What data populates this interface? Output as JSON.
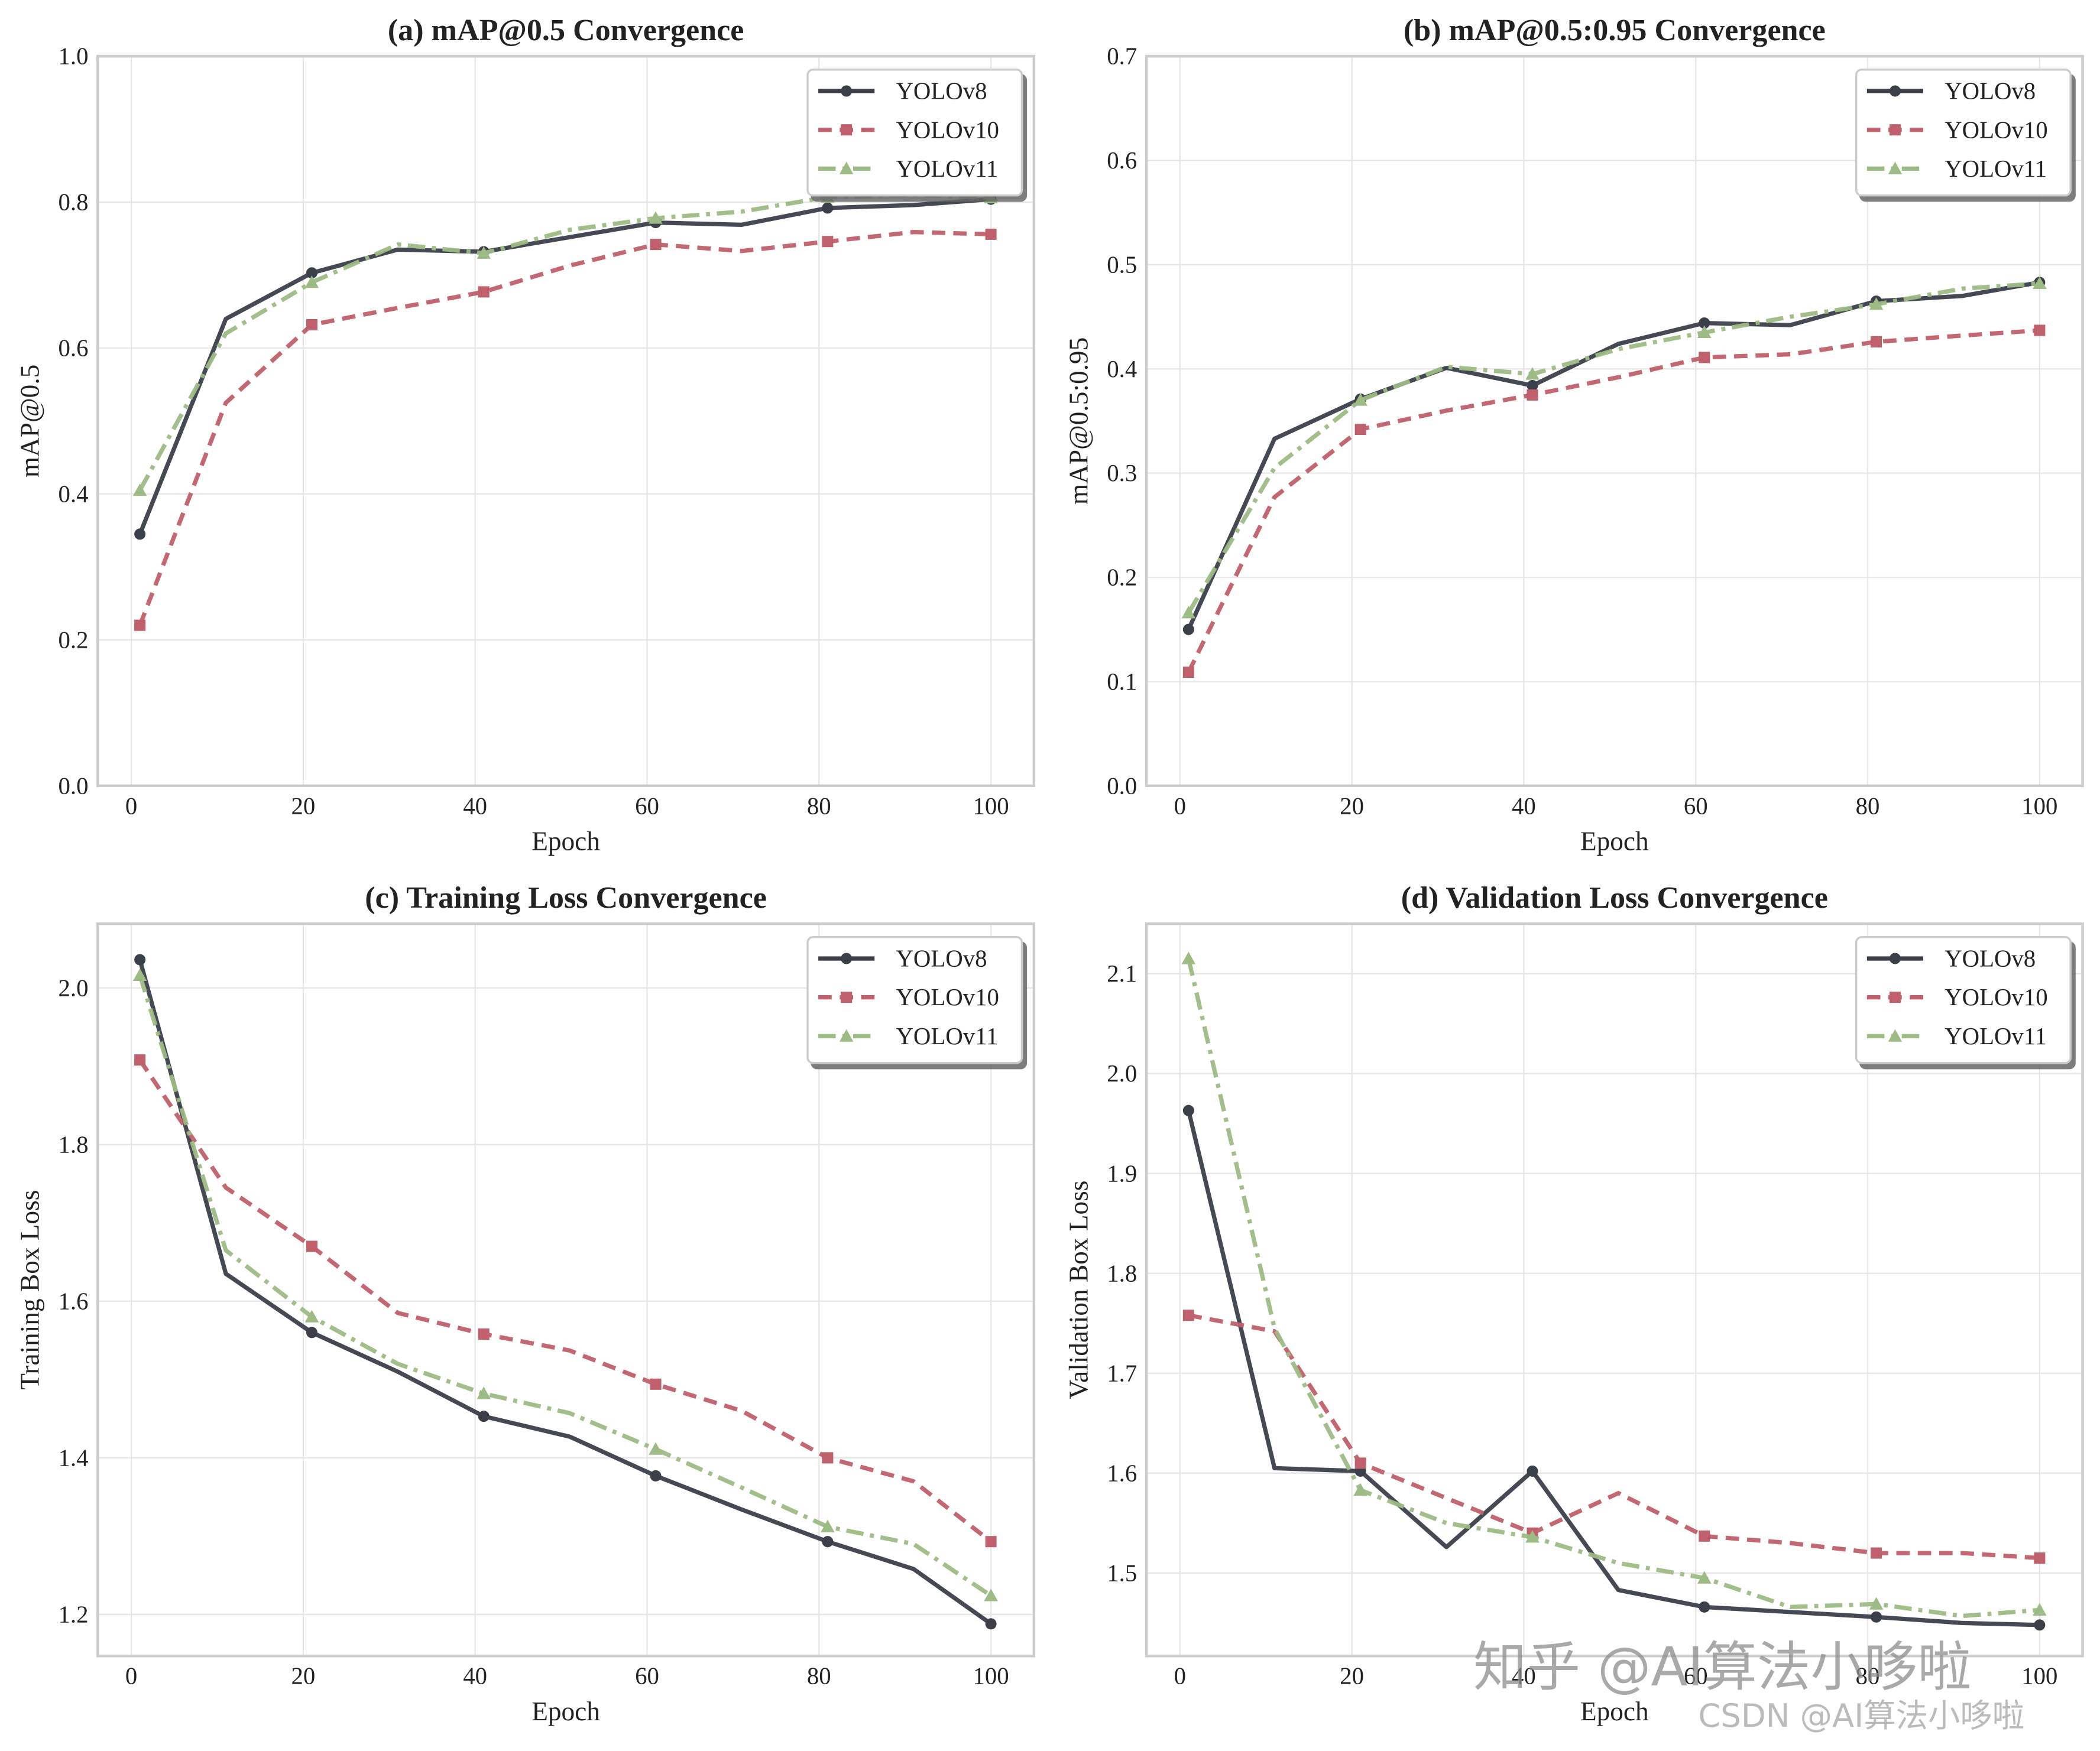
{
  "colors": {
    "YOLOv8": "#3b3f4a",
    "YOLOv10": "#c0606c",
    "YOLOv11": "#9dbb84",
    "grid": "#e6e6e6",
    "frame": "#cccccc",
    "text": "#222222"
  },
  "watermarks": {
    "zhihu": "知乎 @AI算法小哆啦",
    "csdn": "CSDN @AI算法小哆啦"
  },
  "chart_data": [
    {
      "id": "a",
      "type": "line",
      "title": "(a) mAP@0.5 Convergence",
      "xlabel": "Epoch",
      "ylabel": "mAP@0.5",
      "xlim": [
        -3.9,
        105
      ],
      "ylim": [
        0.0,
        1.0
      ],
      "xticks": [
        0,
        20,
        40,
        60,
        80,
        100
      ],
      "yticks": [
        0.0,
        0.2,
        0.4,
        0.6,
        0.8,
        1.0
      ],
      "ytick_labels": [
        "0.0",
        "0.2",
        "0.4",
        "0.6",
        "0.8",
        "1.0"
      ],
      "grid": true,
      "legend": "top-right",
      "x": [
        1,
        11,
        21,
        31,
        41,
        51,
        61,
        71,
        81,
        91,
        100
      ],
      "series": [
        {
          "name": "YOLOv8",
          "style": "solid",
          "marker": "circle",
          "marker_epochs": [
            1,
            21,
            41,
            61,
            81,
            100
          ],
          "values": [
            0.345,
            0.64,
            0.703,
            0.735,
            0.732,
            0.752,
            0.772,
            0.769,
            0.792,
            0.796,
            0.804
          ]
        },
        {
          "name": "YOLOv10",
          "style": "dashed",
          "marker": "square",
          "marker_epochs": [
            1,
            21,
            41,
            61,
            81,
            100
          ],
          "values": [
            0.22,
            0.525,
            0.632,
            0.655,
            0.677,
            0.713,
            0.742,
            0.733,
            0.746,
            0.759,
            0.756
          ]
        },
        {
          "name": "YOLOv11",
          "style": "dashdot",
          "marker": "triangle",
          "marker_epochs": [
            1,
            21,
            41,
            61,
            81,
            100
          ],
          "values": [
            0.405,
            0.62,
            0.69,
            0.742,
            0.73,
            0.762,
            0.778,
            0.787,
            0.807,
            0.81,
            0.806
          ]
        }
      ]
    },
    {
      "id": "b",
      "type": "line",
      "title": "(b) mAP@0.5:0.95 Convergence",
      "xlabel": "Epoch",
      "ylabel": "mAP@0.5:0.95",
      "xlim": [
        -3.9,
        105
      ],
      "ylim": [
        0.0,
        0.7
      ],
      "xticks": [
        0,
        20,
        40,
        60,
        80,
        100
      ],
      "yticks": [
        0.0,
        0.1,
        0.2,
        0.3,
        0.4,
        0.5,
        0.6,
        0.7
      ],
      "ytick_labels": [
        "0.0",
        "0.1",
        "0.2",
        "0.3",
        "0.4",
        "0.5",
        "0.6",
        "0.7"
      ],
      "grid": true,
      "legend": "top-right",
      "x": [
        1,
        11,
        21,
        31,
        41,
        51,
        61,
        71,
        81,
        91,
        100
      ],
      "series": [
        {
          "name": "YOLOv8",
          "style": "solid",
          "marker": "circle",
          "marker_epochs": [
            1,
            21,
            41,
            61,
            81,
            100
          ],
          "values": [
            0.15,
            0.333,
            0.371,
            0.401,
            0.384,
            0.424,
            0.444,
            0.442,
            0.465,
            0.47,
            0.483
          ]
        },
        {
          "name": "YOLOv10",
          "style": "dashed",
          "marker": "square",
          "marker_epochs": [
            1,
            21,
            41,
            61,
            81,
            100
          ],
          "values": [
            0.109,
            0.277,
            0.342,
            0.36,
            0.375,
            0.392,
            0.411,
            0.414,
            0.426,
            0.432,
            0.437
          ]
        },
        {
          "name": "YOLOv11",
          "style": "dashdot",
          "marker": "triangle",
          "marker_epochs": [
            1,
            21,
            41,
            61,
            81,
            100
          ],
          "values": [
            0.166,
            0.305,
            0.37,
            0.402,
            0.395,
            0.419,
            0.435,
            0.45,
            0.462,
            0.477,
            0.482
          ]
        }
      ]
    },
    {
      "id": "c",
      "type": "line",
      "title": "(c) Training Loss Convergence",
      "xlabel": "Epoch",
      "ylabel": "Training Box Loss",
      "xlim": [
        -3.9,
        105
      ],
      "ylim": [
        1.147,
        2.082
      ],
      "xticks": [
        0,
        20,
        40,
        60,
        80,
        100
      ],
      "yticks": [
        1.2,
        1.4,
        1.6,
        1.8,
        2.0
      ],
      "ytick_labels": [
        "1.2",
        "1.4",
        "1.6",
        "1.8",
        "2.0"
      ],
      "grid": true,
      "legend": "top-right",
      "x": [
        1,
        11,
        21,
        31,
        41,
        51,
        61,
        71,
        81,
        91,
        100
      ],
      "series": [
        {
          "name": "YOLOv8",
          "style": "solid",
          "marker": "circle",
          "marker_epochs": [
            1,
            21,
            41,
            61,
            81,
            100
          ],
          "values": [
            2.036,
            1.635,
            1.56,
            1.51,
            1.453,
            1.427,
            1.377,
            1.334,
            1.293,
            1.258,
            1.188
          ]
        },
        {
          "name": "YOLOv10",
          "style": "dashed",
          "marker": "square",
          "marker_epochs": [
            1,
            21,
            41,
            61,
            81,
            100
          ],
          "values": [
            1.908,
            1.745,
            1.67,
            1.585,
            1.558,
            1.537,
            1.494,
            1.46,
            1.4,
            1.37,
            1.293
          ]
        },
        {
          "name": "YOLOv11",
          "style": "dashdot",
          "marker": "triangle",
          "marker_epochs": [
            1,
            21,
            41,
            61,
            81,
            100
          ],
          "values": [
            2.016,
            1.665,
            1.58,
            1.52,
            1.482,
            1.457,
            1.411,
            1.362,
            1.312,
            1.29,
            1.224
          ]
        }
      ]
    },
    {
      "id": "d",
      "type": "line",
      "title": "(d) Validation Loss Convergence",
      "xlabel": "Epoch",
      "ylabel": "Validation Box Loss",
      "xlim": [
        -3.9,
        105
      ],
      "ylim": [
        1.417,
        2.15
      ],
      "xticks": [
        0,
        20,
        40,
        60,
        80,
        100
      ],
      "yticks": [
        1.5,
        1.6,
        1.7,
        1.8,
        1.9,
        2.0,
        2.1
      ],
      "ytick_labels": [
        "1.5",
        "1.6",
        "1.7",
        "1.8",
        "1.9",
        "2.0",
        "2.1"
      ],
      "grid": true,
      "legend": "top-right",
      "x": [
        1,
        11,
        21,
        31,
        41,
        51,
        61,
        71,
        81,
        91,
        100
      ],
      "series": [
        {
          "name": "YOLOv8",
          "style": "solid",
          "marker": "circle",
          "marker_epochs": [
            1,
            21,
            41,
            61,
            81,
            100
          ],
          "values": [
            1.963,
            1.605,
            1.602,
            1.526,
            1.602,
            1.483,
            1.466,
            1.461,
            1.456,
            1.45,
            1.448
          ]
        },
        {
          "name": "YOLOv10",
          "style": "dashed",
          "marker": "square",
          "marker_epochs": [
            1,
            21,
            41,
            61,
            81,
            100
          ],
          "values": [
            1.758,
            1.742,
            1.61,
            1.575,
            1.54,
            1.58,
            1.537,
            1.53,
            1.52,
            1.52,
            1.515
          ]
        },
        {
          "name": "YOLOv11",
          "style": "dashdot",
          "marker": "triangle",
          "marker_epochs": [
            1,
            21,
            41,
            61,
            81,
            100
          ],
          "values": [
            2.115,
            1.745,
            1.583,
            1.55,
            1.536,
            1.51,
            1.495,
            1.466,
            1.469,
            1.457,
            1.463
          ]
        }
      ]
    }
  ]
}
